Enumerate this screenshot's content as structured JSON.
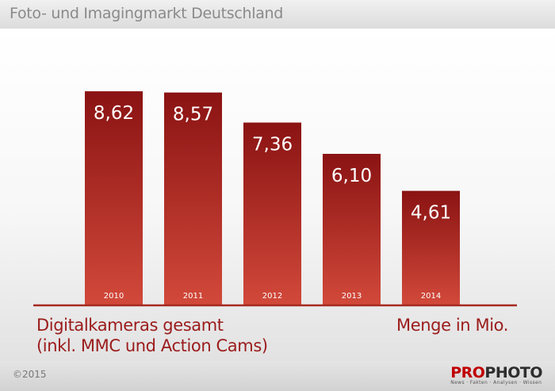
{
  "header": {
    "title": "Foto- und Imagingmarkt Deutschland"
  },
  "chart_data": {
    "type": "bar",
    "categories": [
      "2010",
      "2011",
      "2012",
      "2013",
      "2014"
    ],
    "values": [
      8.62,
      8.57,
      7.36,
      6.1,
      4.61
    ],
    "value_labels": [
      "8,62",
      "8,57",
      "7,36",
      "6,10",
      "4,61"
    ],
    "ylim": [
      0,
      9.9
    ],
    "grid": false,
    "colors": {
      "bar_top": "#8a1313",
      "bar_bottom": "#d2493a",
      "axis": "#a52a20"
    }
  },
  "captions": {
    "left_line1": "Digitalkameras gesamt",
    "left_line2": "(inkl. MMC und Action Cams)",
    "right": "Menge in Mio."
  },
  "footer": {
    "copyright": "©2015",
    "logo_pro": "PRO",
    "logo_photo": "PHOTO",
    "logo_tagline": "News · Fakten · Analysen · Wissen"
  }
}
